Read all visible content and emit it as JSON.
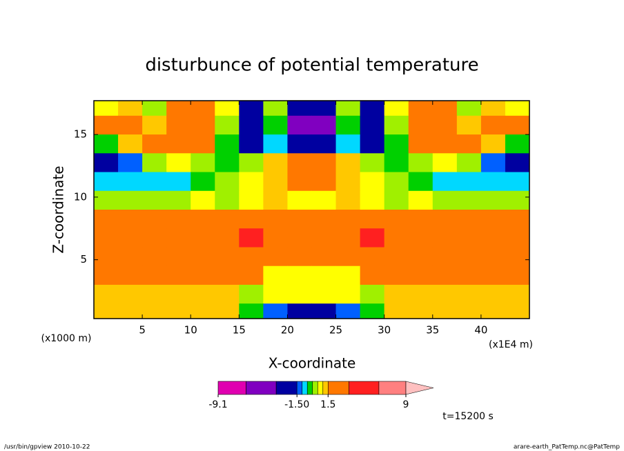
{
  "chart_data": {
    "type": "contour",
    "title": "disturbunce of potential temperature",
    "x_label": "X-coordinate",
    "y_label": "Z-coordinate",
    "x_unit": "(x1E4 m)",
    "y_unit": "(x1000 m)",
    "annotation": "t=15200 s",
    "xlim": [
      0,
      45
    ],
    "ylim": [
      0.3,
      17.7
    ],
    "xticks": [
      5,
      10,
      15,
      20,
      25,
      30,
      35,
      40
    ],
    "yticks": [
      5,
      10,
      15
    ],
    "x": [
      1.25,
      3.75,
      6.25,
      8.75,
      11.25,
      13.75,
      16.25,
      18.75,
      21.25,
      23.75,
      26.25,
      28.75,
      31.25,
      33.75,
      36.25,
      38.75,
      41.25,
      43.75
    ],
    "y": [
      17.25,
      15.75,
      14.25,
      12.75,
      11.25,
      9.75,
      8.25,
      6.75,
      5.25,
      3.75,
      2.25,
      0.75
    ],
    "z": [
      [
        0.7,
        1.2,
        0.3,
        2.0,
        2.2,
        0.7,
        -2.0,
        0.3,
        -2.5,
        -2.5,
        0.3,
        -2.0,
        0.7,
        2.2,
        2.0,
        0.3,
        1.2,
        0.7
      ],
      [
        2.0,
        2.5,
        1.2,
        2.8,
        2.5,
        0.3,
        -3.0,
        -0.3,
        -4.0,
        -4.0,
        -0.3,
        -3.0,
        0.3,
        2.5,
        2.8,
        1.2,
        2.5,
        2.0
      ],
      [
        -0.3,
        1.2,
        2.0,
        2.5,
        2.0,
        -0.2,
        -2.0,
        -0.8,
        -2.0,
        -2.0,
        -0.8,
        -2.0,
        -0.2,
        2.0,
        2.5,
        2.0,
        1.2,
        -0.3
      ],
      [
        -2.0,
        -1.2,
        0.2,
        0.7,
        0.3,
        -0.3,
        0.2,
        1.2,
        1.8,
        1.8,
        1.2,
        0.2,
        -0.3,
        0.3,
        0.7,
        0.2,
        -1.2,
        -2.0
      ],
      [
        -0.7,
        -0.7,
        -0.7,
        -0.7,
        -0.2,
        0.3,
        0.7,
        1.2,
        2.0,
        2.0,
        1.2,
        0.7,
        0.3,
        -0.2,
        -0.7,
        -0.7,
        -0.7,
        -0.7
      ],
      [
        0.3,
        0.3,
        0.2,
        0.4,
        0.7,
        0.3,
        0.7,
        1.2,
        0.8,
        0.8,
        1.2,
        0.7,
        0.3,
        0.7,
        0.4,
        0.2,
        0.3,
        0.3
      ],
      [
        1.8,
        1.8,
        1.8,
        1.9,
        2.0,
        2.0,
        2.0,
        2.0,
        2.0,
        2.0,
        2.0,
        2.0,
        2.0,
        2.0,
        1.9,
        1.8,
        1.8,
        1.8
      ],
      [
        2.5,
        2.5,
        2.5,
        2.5,
        2.5,
        2.6,
        3.8,
        2.6,
        2.5,
        2.5,
        2.6,
        3.8,
        2.6,
        2.5,
        2.5,
        2.5,
        2.5,
        2.5
      ],
      [
        2.5,
        2.5,
        2.5,
        2.5,
        2.5,
        2.5,
        2.4,
        2.3,
        2.2,
        2.2,
        2.3,
        2.4,
        2.5,
        2.5,
        2.5,
        2.5,
        2.5,
        2.5
      ],
      [
        1.8,
        1.8,
        1.8,
        1.8,
        1.8,
        1.8,
        1.6,
        0.7,
        0.8,
        0.8,
        0.7,
        1.6,
        1.8,
        1.8,
        1.8,
        1.8,
        1.8,
        1.8
      ],
      [
        1.2,
        1.2,
        1.2,
        1.2,
        1.2,
        1.2,
        0.3,
        0.7,
        0.6,
        0.6,
        0.7,
        0.3,
        1.2,
        1.2,
        1.2,
        1.2,
        1.2,
        1.2
      ],
      [
        1.3,
        1.3,
        1.3,
        1.3,
        1.3,
        1.3,
        -0.3,
        -1.2,
        -2.0,
        -2.0,
        -1.2,
        -0.3,
        1.3,
        1.3,
        1.3,
        1.3,
        1.3,
        1.3
      ]
    ],
    "colorbar": {
      "levels": [
        -9.1,
        -6.4,
        -3.5,
        -1.5,
        -1.0,
        -0.5,
        0,
        0.5,
        1.0,
        1.5,
        3.5,
        6.4,
        9
      ],
      "colors": [
        "#e000b0",
        "#8000c0",
        "#0000a0",
        "#0060ff",
        "#00d8ff",
        "#00d000",
        "#a0f000",
        "#ffff00",
        "#ffc800",
        "#ff7800",
        "#ff2020",
        "#ff8080"
      ],
      "extend_color": "#ffc0c0",
      "ticks": [
        -9.1,
        {
          "value": -1.5,
          "label": "-1.50"
        },
        1.5,
        9
      ]
    }
  },
  "footer": {
    "left": "/usr/bin/gpview  2010-10-22",
    "right": "arare-earth_PatTemp.nc@PatTemp"
  }
}
